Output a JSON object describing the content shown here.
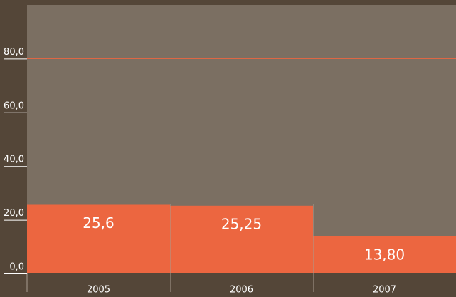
{
  "chart_data": {
    "type": "bar",
    "categories": [
      "2005",
      "2006",
      "2007"
    ],
    "values": [
      25.6,
      25.25,
      13.8
    ],
    "value_labels": [
      "25,6",
      "25,25",
      "13,80"
    ],
    "color": "#ec6640",
    "ylim": [
      0,
      100
    ],
    "yticks": [
      {
        "value": 0,
        "label": "0,0"
      },
      {
        "value": 20,
        "label": "20,0"
      },
      {
        "value": 40,
        "label": "40,0"
      },
      {
        "value": 60,
        "label": "60,0"
      },
      {
        "value": 80,
        "label": "80,0"
      }
    ],
    "reference_line": 80
  }
}
